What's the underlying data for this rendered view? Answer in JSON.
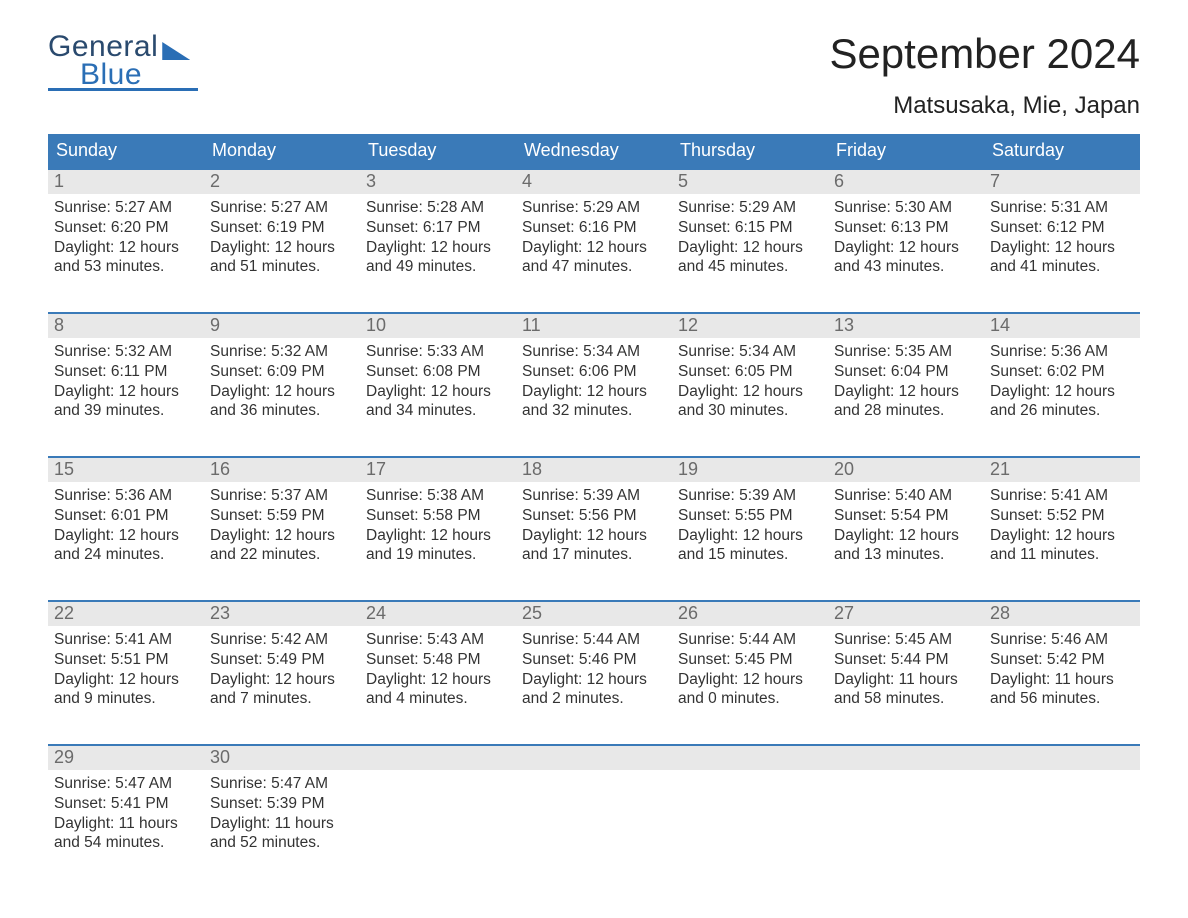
{
  "brand": {
    "top": "General",
    "bottom": "Blue"
  },
  "title": "September 2024",
  "subtitle": "Matsusaka, Mie, Japan",
  "colors": {
    "header_bg": "#3a7ab8",
    "header_text": "#ffffff",
    "week_border": "#3a7ab8",
    "daynum_bg": "#e8e8e8",
    "daynum_text": "#6b6b6b",
    "body_text": "#333333",
    "page_bg": "#ffffff",
    "brand_blue": "#2a6eb5"
  },
  "typography": {
    "title_fontsize": 42,
    "subtitle_fontsize": 24,
    "dow_fontsize": 18,
    "daynum_fontsize": 18,
    "body_fontsize": 15.5
  },
  "daysOfWeek": [
    "Sunday",
    "Monday",
    "Tuesday",
    "Wednesday",
    "Thursday",
    "Friday",
    "Saturday"
  ],
  "calendar": {
    "startDayOfWeek": 0,
    "daysInMonth": 30,
    "days": [
      {
        "n": 1,
        "sunrise": "5:27 AM",
        "sunset": "6:20 PM",
        "daylight": "12 hours and 53 minutes."
      },
      {
        "n": 2,
        "sunrise": "5:27 AM",
        "sunset": "6:19 PM",
        "daylight": "12 hours and 51 minutes."
      },
      {
        "n": 3,
        "sunrise": "5:28 AM",
        "sunset": "6:17 PM",
        "daylight": "12 hours and 49 minutes."
      },
      {
        "n": 4,
        "sunrise": "5:29 AM",
        "sunset": "6:16 PM",
        "daylight": "12 hours and 47 minutes."
      },
      {
        "n": 5,
        "sunrise": "5:29 AM",
        "sunset": "6:15 PM",
        "daylight": "12 hours and 45 minutes."
      },
      {
        "n": 6,
        "sunrise": "5:30 AM",
        "sunset": "6:13 PM",
        "daylight": "12 hours and 43 minutes."
      },
      {
        "n": 7,
        "sunrise": "5:31 AM",
        "sunset": "6:12 PM",
        "daylight": "12 hours and 41 minutes."
      },
      {
        "n": 8,
        "sunrise": "5:32 AM",
        "sunset": "6:11 PM",
        "daylight": "12 hours and 39 minutes."
      },
      {
        "n": 9,
        "sunrise": "5:32 AM",
        "sunset": "6:09 PM",
        "daylight": "12 hours and 36 minutes."
      },
      {
        "n": 10,
        "sunrise": "5:33 AM",
        "sunset": "6:08 PM",
        "daylight": "12 hours and 34 minutes."
      },
      {
        "n": 11,
        "sunrise": "5:34 AM",
        "sunset": "6:06 PM",
        "daylight": "12 hours and 32 minutes."
      },
      {
        "n": 12,
        "sunrise": "5:34 AM",
        "sunset": "6:05 PM",
        "daylight": "12 hours and 30 minutes."
      },
      {
        "n": 13,
        "sunrise": "5:35 AM",
        "sunset": "6:04 PM",
        "daylight": "12 hours and 28 minutes."
      },
      {
        "n": 14,
        "sunrise": "5:36 AM",
        "sunset": "6:02 PM",
        "daylight": "12 hours and 26 minutes."
      },
      {
        "n": 15,
        "sunrise": "5:36 AM",
        "sunset": "6:01 PM",
        "daylight": "12 hours and 24 minutes."
      },
      {
        "n": 16,
        "sunrise": "5:37 AM",
        "sunset": "5:59 PM",
        "daylight": "12 hours and 22 minutes."
      },
      {
        "n": 17,
        "sunrise": "5:38 AM",
        "sunset": "5:58 PM",
        "daylight": "12 hours and 19 minutes."
      },
      {
        "n": 18,
        "sunrise": "5:39 AM",
        "sunset": "5:56 PM",
        "daylight": "12 hours and 17 minutes."
      },
      {
        "n": 19,
        "sunrise": "5:39 AM",
        "sunset": "5:55 PM",
        "daylight": "12 hours and 15 minutes."
      },
      {
        "n": 20,
        "sunrise": "5:40 AM",
        "sunset": "5:54 PM",
        "daylight": "12 hours and 13 minutes."
      },
      {
        "n": 21,
        "sunrise": "5:41 AM",
        "sunset": "5:52 PM",
        "daylight": "12 hours and 11 minutes."
      },
      {
        "n": 22,
        "sunrise": "5:41 AM",
        "sunset": "5:51 PM",
        "daylight": "12 hours and 9 minutes."
      },
      {
        "n": 23,
        "sunrise": "5:42 AM",
        "sunset": "5:49 PM",
        "daylight": "12 hours and 7 minutes."
      },
      {
        "n": 24,
        "sunrise": "5:43 AM",
        "sunset": "5:48 PM",
        "daylight": "12 hours and 4 minutes."
      },
      {
        "n": 25,
        "sunrise": "5:44 AM",
        "sunset": "5:46 PM",
        "daylight": "12 hours and 2 minutes."
      },
      {
        "n": 26,
        "sunrise": "5:44 AM",
        "sunset": "5:45 PM",
        "daylight": "12 hours and 0 minutes."
      },
      {
        "n": 27,
        "sunrise": "5:45 AM",
        "sunset": "5:44 PM",
        "daylight": "11 hours and 58 minutes."
      },
      {
        "n": 28,
        "sunrise": "5:46 AM",
        "sunset": "5:42 PM",
        "daylight": "11 hours and 56 minutes."
      },
      {
        "n": 29,
        "sunrise": "5:47 AM",
        "sunset": "5:41 PM",
        "daylight": "11 hours and 54 minutes."
      },
      {
        "n": 30,
        "sunrise": "5:47 AM",
        "sunset": "5:39 PM",
        "daylight": "11 hours and 52 minutes."
      }
    ]
  },
  "labels": {
    "sunrise": "Sunrise:",
    "sunset": "Sunset:",
    "daylight": "Daylight:"
  }
}
